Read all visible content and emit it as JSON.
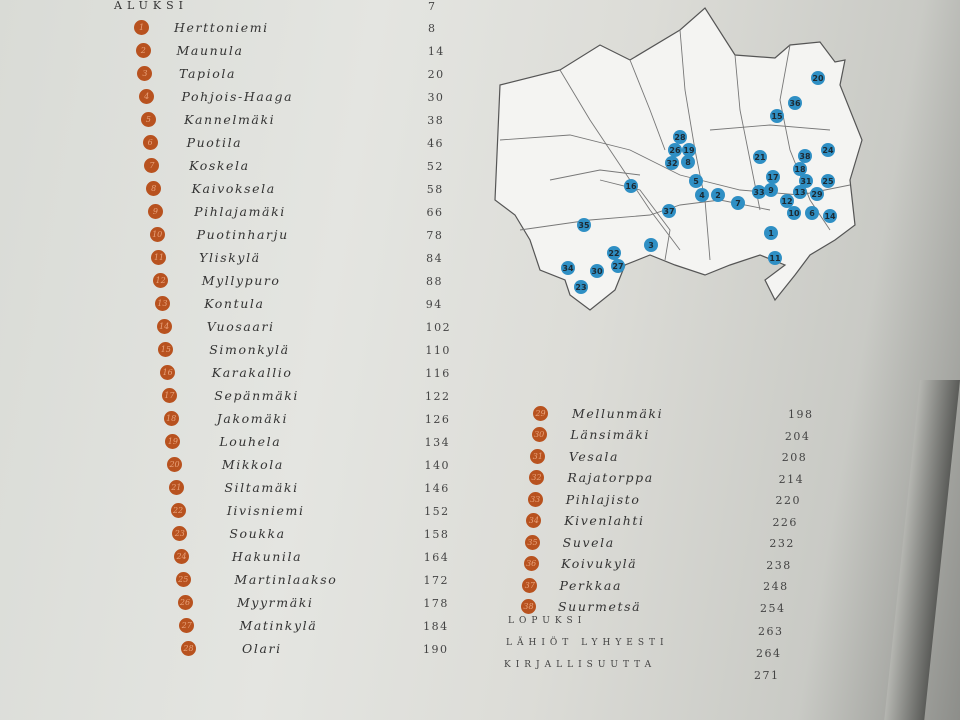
{
  "intro": {
    "label": "Aluksi",
    "page": "7"
  },
  "left_entries": [
    {
      "num": "1",
      "name": "Herttoniemi",
      "page": "8"
    },
    {
      "num": "2",
      "name": "Maunula",
      "page": "14"
    },
    {
      "num": "3",
      "name": "Tapiola",
      "page": "20"
    },
    {
      "num": "4",
      "name": "Pohjois-Haaga",
      "page": "30"
    },
    {
      "num": "5",
      "name": "Kannelmäki",
      "page": "38"
    },
    {
      "num": "6",
      "name": "Puotila",
      "page": "46"
    },
    {
      "num": "7",
      "name": "Koskela",
      "page": "52"
    },
    {
      "num": "8",
      "name": "Kaivoksela",
      "page": "58"
    },
    {
      "num": "9",
      "name": "Pihlajamäki",
      "page": "66"
    },
    {
      "num": "10",
      "name": "Puotinharju",
      "page": "78"
    },
    {
      "num": "11",
      "name": "Yliskylä",
      "page": "84"
    },
    {
      "num": "12",
      "name": "Myllypuro",
      "page": "88"
    },
    {
      "num": "13",
      "name": "Kontula",
      "page": "94"
    },
    {
      "num": "14",
      "name": "Vuosaari",
      "page": "102"
    },
    {
      "num": "15",
      "name": "Simonkylä",
      "page": "110"
    },
    {
      "num": "16",
      "name": "Karakallio",
      "page": "116"
    },
    {
      "num": "17",
      "name": "Sepänmäki",
      "page": "122"
    },
    {
      "num": "18",
      "name": "Jakomäki",
      "page": "126"
    },
    {
      "num": "19",
      "name": "Louhela",
      "page": "134"
    },
    {
      "num": "20",
      "name": "Mikkola",
      "page": "140"
    },
    {
      "num": "21",
      "name": "Siltamäki",
      "page": "146"
    },
    {
      "num": "22",
      "name": "Iivisniemi",
      "page": "152"
    },
    {
      "num": "23",
      "name": "Soukka",
      "page": "158"
    },
    {
      "num": "24",
      "name": "Hakunila",
      "page": "164"
    },
    {
      "num": "25",
      "name": "Martinlaakso",
      "page": "172"
    },
    {
      "num": "26",
      "name": "Myyrmäki",
      "page": "178"
    },
    {
      "num": "27",
      "name": "Matinkylä",
      "page": "184"
    },
    {
      "num": "28",
      "name": "Olari",
      "page": "190"
    }
  ],
  "right_entries": [
    {
      "num": "29",
      "name": "Mellunmäki",
      "page": "198"
    },
    {
      "num": "30",
      "name": "Länsimäki",
      "page": "204"
    },
    {
      "num": "31",
      "name": "Vesala",
      "page": "208"
    },
    {
      "num": "32",
      "name": "Rajatorppa",
      "page": "214"
    },
    {
      "num": "33",
      "name": "Pihlajisto",
      "page": "220"
    },
    {
      "num": "34",
      "name": "Kivenlahti",
      "page": "226"
    },
    {
      "num": "35",
      "name": "Suvela",
      "page": "232"
    },
    {
      "num": "36",
      "name": "Koivukylä",
      "page": "238"
    },
    {
      "num": "37",
      "name": "Perkkaa",
      "page": "248"
    },
    {
      "num": "38",
      "name": "Suurmetsä",
      "page": "254"
    }
  ],
  "closing_sections": [
    {
      "label": "Lopuksi",
      "page": "263"
    },
    {
      "label": "Lähiöt lyhyesti",
      "page": "264"
    },
    {
      "label": "Kirjallisuutta",
      "page": "271"
    }
  ],
  "map": {
    "marker_color": "#2f8fc4",
    "badge_color": "#b8521f",
    "markers": [
      "20",
      "36",
      "15",
      "28",
      "26",
      "19",
      "32",
      "8",
      "21",
      "38",
      "24",
      "18",
      "17",
      "31",
      "25",
      "5",
      "16",
      "4",
      "2",
      "7",
      "33",
      "9",
      "13",
      "29",
      "12",
      "37",
      "10",
      "6",
      "14",
      "35",
      "1",
      "3",
      "22",
      "11",
      "34",
      "30",
      "27",
      "23"
    ]
  }
}
